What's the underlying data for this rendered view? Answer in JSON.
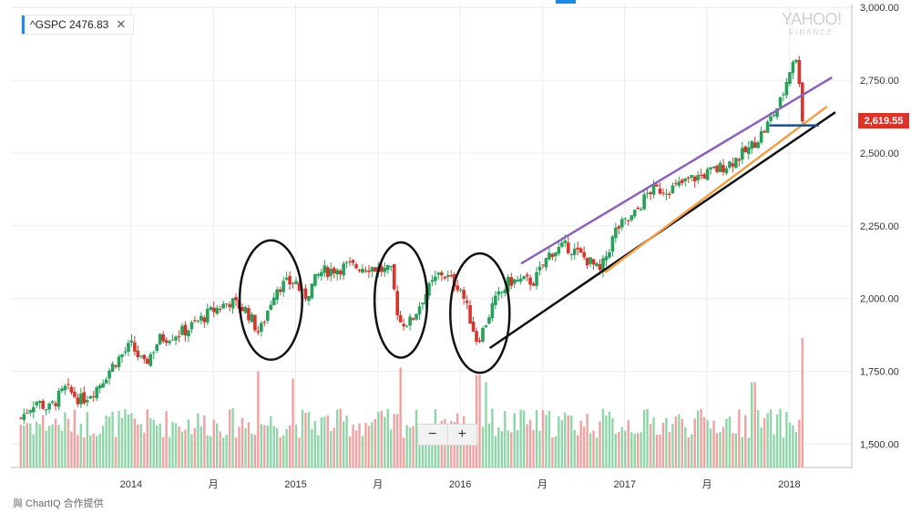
{
  "ticker": {
    "label": "^GSPC 2476.83",
    "close_icon": "close-icon"
  },
  "price_tag": "2,619.55",
  "watermark": {
    "main": "YAHOO!",
    "sub": "FINANCE"
  },
  "zoom": {
    "minus": "−",
    "plus": "+"
  },
  "credit": "與 ChartIQ 合作提供",
  "colors": {
    "up": "#27a05a",
    "down": "#d9342b",
    "vol_up": "#8ed6a8",
    "vol_down": "#f2a0a0",
    "purple": "#8b62b8",
    "orange": "#f0a04a",
    "black": "#111111",
    "navy": "#1f4f82"
  },
  "chart_data": {
    "type": "candlestick",
    "y_ticks": [
      "3,000.00",
      "2,750.00",
      "2,500.00",
      "2,250.00",
      "2,000.00",
      "1,750.00",
      "1,500.00"
    ],
    "y_tick_values": [
      3000,
      2750,
      2500,
      2250,
      2000,
      1750,
      1500
    ],
    "ylim": [
      1420,
      3010
    ],
    "x_ticks": [
      {
        "label": "2014",
        "t": 2014.0
      },
      {
        "label": "月",
        "t": 2014.5
      },
      {
        "label": "2015",
        "t": 2015.0
      },
      {
        "label": "月",
        "t": 2015.5
      },
      {
        "label": "2016",
        "t": 2016.0
      },
      {
        "label": "月",
        "t": 2016.5
      },
      {
        "label": "2017",
        "t": 2017.0
      },
      {
        "label": "月",
        "t": 2017.5
      },
      {
        "label": "2018",
        "t": 2018.0
      }
    ],
    "xlim": [
      2013.27,
      2018.38
    ],
    "close_path": [
      [
        2013.33,
        1590
      ],
      [
        2013.42,
        1650
      ],
      [
        2013.5,
        1620
      ],
      [
        2013.6,
        1690
      ],
      [
        2013.7,
        1650
      ],
      [
        2013.8,
        1700
      ],
      [
        2013.9,
        1780
      ],
      [
        2014.0,
        1840
      ],
      [
        2014.08,
        1770
      ],
      [
        2014.17,
        1860
      ],
      [
        2014.33,
        1890
      ],
      [
        2014.5,
        1960
      ],
      [
        2014.6,
        1990
      ],
      [
        2014.7,
        1960
      ],
      [
        2014.78,
        1880
      ],
      [
        2014.88,
        2040
      ],
      [
        2015.0,
        2060
      ],
      [
        2015.05,
        2000
      ],
      [
        2015.15,
        2090
      ],
      [
        2015.3,
        2110
      ],
      [
        2015.45,
        2110
      ],
      [
        2015.58,
        2090
      ],
      [
        2015.63,
        1920
      ],
      [
        2015.7,
        1920
      ],
      [
        2015.78,
        2010
      ],
      [
        2015.88,
        2090
      ],
      [
        2016.0,
        2040
      ],
      [
        2016.1,
        1860
      ],
      [
        2016.13,
        1880
      ],
      [
        2016.2,
        1980
      ],
      [
        2016.3,
        2060
      ],
      [
        2016.45,
        2060
      ],
      [
        2016.55,
        2160
      ],
      [
        2016.65,
        2180
      ],
      [
        2016.78,
        2130
      ],
      [
        2016.85,
        2090
      ],
      [
        2016.95,
        2240
      ],
      [
        2017.05,
        2280
      ],
      [
        2017.15,
        2370
      ],
      [
        2017.3,
        2380
      ],
      [
        2017.4,
        2410
      ],
      [
        2017.55,
        2440
      ],
      [
        2017.65,
        2470
      ],
      [
        2017.75,
        2510
      ],
      [
        2017.85,
        2580
      ],
      [
        2017.95,
        2680
      ],
      [
        2018.03,
        2840
      ],
      [
        2018.06,
        2760
      ],
      [
        2018.08,
        2620
      ]
    ],
    "series": [
      {
        "name": "",
        "color": "#8b62b8",
        "x": [
          2016.37,
          2018.26
        ],
        "y": [
          2120,
          2760
        ]
      },
      {
        "name": "",
        "color": "#111111",
        "x": [
          2016.18,
          2018.28
        ],
        "y": [
          1830,
          2640
        ]
      },
      {
        "name": "",
        "color": "#f0a04a",
        "x": [
          2016.88,
          2018.23
        ],
        "y": [
          2090,
          2660
        ]
      },
      {
        "name": "",
        "color": "#1f4f82",
        "x": [
          2017.88,
          2018.18
        ],
        "y": [
          2595,
          2595
        ]
      }
    ],
    "ellipses": [
      {
        "cx": 2014.85,
        "cy": 1995,
        "rx": 0.19,
        "ry": 205
      },
      {
        "cx": 2015.64,
        "cy": 1995,
        "rx": 0.16,
        "ry": 198
      },
      {
        "cx": 2016.12,
        "cy": 1950,
        "rx": 0.18,
        "ry": 205
      }
    ],
    "volume_spikes": [
      {
        "t": 2014.77,
        "v": 0.26
      },
      {
        "t": 2014.99,
        "v": 0.24
      },
      {
        "t": 2015.63,
        "v": 0.27
      },
      {
        "t": 2016.11,
        "v": 0.25
      },
      {
        "t": 2016.16,
        "v": 0.23
      },
      {
        "t": 2017.78,
        "v": 0.23
      },
      {
        "t": 2018.08,
        "v": 0.35
      }
    ]
  }
}
